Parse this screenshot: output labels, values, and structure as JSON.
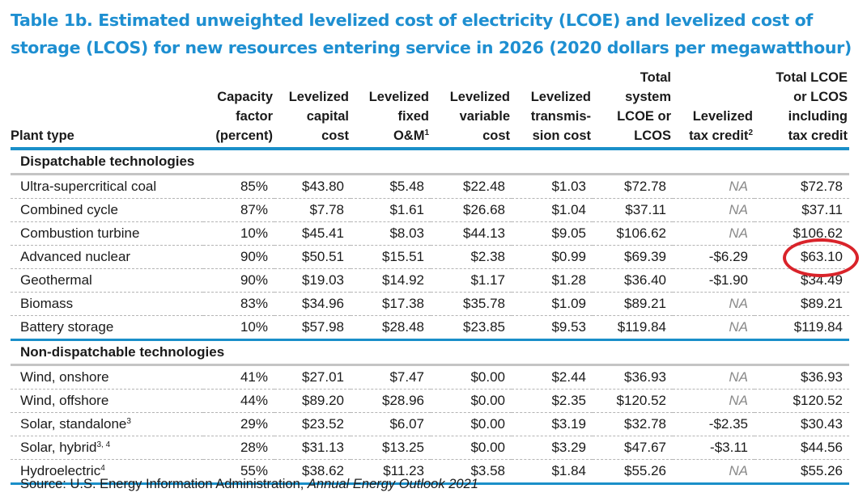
{
  "title": "Table 1b. Estimated unweighted levelized cost of electricity (LCOE) and levelized cost of storage (LCOS) for new resources entering service in 2026 (2020 dollars per megawatthour)",
  "columns": {
    "plant_type": "Plant type",
    "capacity_factor": [
      "Capacity",
      "factor",
      "(percent)"
    ],
    "capital": [
      "Levelized",
      "capital",
      "cost"
    ],
    "fixed_om": [
      "Levelized",
      "fixed",
      "O&M"
    ],
    "fixed_om_note": "1",
    "variable": [
      "Levelized",
      "variable",
      "cost"
    ],
    "transmission": [
      "Levelized",
      "transmis-",
      "sion cost"
    ],
    "total": [
      "Total",
      "system",
      "LCOE or",
      "LCOS"
    ],
    "tax_credit": [
      "Levelized",
      "tax credit"
    ],
    "tax_credit_note": "2",
    "total_incl": [
      "Total LCOE",
      "or LCOS",
      "including",
      "tax credit"
    ]
  },
  "sections": [
    {
      "label": "Dispatchable technologies",
      "rows": [
        {
          "name": "Ultra-supercritical coal",
          "note": "",
          "cf": "85%",
          "capital": "$43.80",
          "fixed_om": "$5.48",
          "variable": "$22.48",
          "transmission": "$1.03",
          "total": "$72.78",
          "tax_credit": "NA",
          "total_incl": "$72.78"
        },
        {
          "name": "Combined cycle",
          "note": "",
          "cf": "87%",
          "capital": "$7.78",
          "fixed_om": "$1.61",
          "variable": "$26.68",
          "transmission": "$1.04",
          "total": "$37.11",
          "tax_credit": "NA",
          "total_incl": "$37.11"
        },
        {
          "name": "Combustion turbine",
          "note": "",
          "cf": "10%",
          "capital": "$45.41",
          "fixed_om": "$8.03",
          "variable": "$44.13",
          "transmission": "$9.05",
          "total": "$106.62",
          "tax_credit": "NA",
          "total_incl": "$106.62"
        },
        {
          "name": "Advanced nuclear",
          "note": "",
          "cf": "90%",
          "capital": "$50.51",
          "fixed_om": "$15.51",
          "variable": "$2.38",
          "transmission": "$0.99",
          "total": "$69.39",
          "tax_credit": "-$6.29",
          "total_incl": "$63.10",
          "highlighted": true
        },
        {
          "name": "Geothermal",
          "note": "",
          "cf": "90%",
          "capital": "$19.03",
          "fixed_om": "$14.92",
          "variable": "$1.17",
          "transmission": "$1.28",
          "total": "$36.40",
          "tax_credit": "-$1.90",
          "total_incl": "$34.49"
        },
        {
          "name": "Biomass",
          "note": "",
          "cf": "83%",
          "capital": "$34.96",
          "fixed_om": "$17.38",
          "variable": "$35.78",
          "transmission": "$1.09",
          "total": "$89.21",
          "tax_credit": "NA",
          "total_incl": "$89.21"
        },
        {
          "name": "Battery storage",
          "note": "",
          "cf": "10%",
          "capital": "$57.98",
          "fixed_om": "$28.48",
          "variable": "$23.85",
          "transmission": "$9.53",
          "total": "$119.84",
          "tax_credit": "NA",
          "total_incl": "$119.84"
        }
      ]
    },
    {
      "label": "Non-dispatchable technologies",
      "rows": [
        {
          "name": "Wind, onshore",
          "note": "",
          "cf": "41%",
          "capital": "$27.01",
          "fixed_om": "$7.47",
          "variable": "$0.00",
          "transmission": "$2.44",
          "total": "$36.93",
          "tax_credit": "NA",
          "total_incl": "$36.93"
        },
        {
          "name": "Wind, offshore",
          "note": "",
          "cf": "44%",
          "capital": "$89.20",
          "fixed_om": "$28.96",
          "variable": "$0.00",
          "transmission": "$2.35",
          "total": "$120.52",
          "tax_credit": "NA",
          "total_incl": "$120.52"
        },
        {
          "name": "Solar, standalone",
          "note": "3",
          "cf": "29%",
          "capital": "$23.52",
          "fixed_om": "$6.07",
          "variable": "$0.00",
          "transmission": "$3.19",
          "total": "$32.78",
          "tax_credit": "-$2.35",
          "total_incl": "$30.43"
        },
        {
          "name": "Solar, hybrid",
          "note": "3, 4",
          "cf": "28%",
          "capital": "$31.13",
          "fixed_om": "$13.25",
          "variable": "$0.00",
          "transmission": "$3.29",
          "total": "$47.67",
          "tax_credit": "-$3.11",
          "total_incl": "$44.56"
        },
        {
          "name": "Hydroelectric",
          "note": "4",
          "cf": "55%",
          "capital": "$38.62",
          "fixed_om": "$11.23",
          "variable": "$3.58",
          "transmission": "$1.84",
          "total": "$55.26",
          "tax_credit": "NA",
          "total_incl": "$55.26"
        }
      ]
    }
  ],
  "annotation": {
    "type": "red-ellipse",
    "target": "Advanced nuclear / Total LCOE or LCOS including tax credit",
    "color": "#d9232a"
  },
  "source": {
    "prefix": "Source: U.S. Energy Information Administration, ",
    "publication": "Annual Energy Outlook 2021"
  }
}
